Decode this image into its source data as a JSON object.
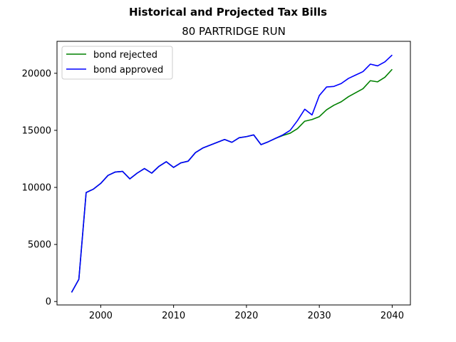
{
  "chart_data": {
    "type": "line",
    "title": "Historical and Projected Tax Bills",
    "subtitle": "80 PARTRIDGE RUN",
    "xlabel": "",
    "ylabel": "",
    "xlim": [
      1994,
      2042.5
    ],
    "ylim": [
      -300,
      22800
    ],
    "xticks": [
      2000,
      2010,
      2020,
      2030,
      2040
    ],
    "yticks": [
      0,
      5000,
      10000,
      15000,
      20000
    ],
    "grid": false,
    "legend_position": "upper-left",
    "series": [
      {
        "name": "bond rejected",
        "color": "#008000",
        "x": [
          1996,
          1997,
          1998,
          1999,
          2000,
          2001,
          2002,
          2003,
          2004,
          2005,
          2006,
          2007,
          2008,
          2009,
          2010,
          2011,
          2012,
          2013,
          2014,
          2015,
          2016,
          2017,
          2018,
          2019,
          2020,
          2021,
          2022,
          2023,
          2024,
          2025,
          2026,
          2027,
          2028,
          2029,
          2030,
          2031,
          2032,
          2033,
          2034,
          2035,
          2036,
          2037,
          2038,
          2039,
          2040
        ],
        "y": [
          800,
          1950,
          9550,
          9850,
          10350,
          11050,
          11350,
          11400,
          10750,
          11250,
          11650,
          11250,
          11850,
          12250,
          11750,
          12150,
          12300,
          13050,
          13450,
          13700,
          13950,
          14200,
          13950,
          14350,
          14450,
          14600,
          13750,
          14000,
          14300,
          14550,
          14750,
          15150,
          15800,
          15950,
          16200,
          16800,
          17200,
          17500,
          17950,
          18300,
          18650,
          19350,
          19250,
          19650,
          20350
        ]
      },
      {
        "name": "bond approved",
        "color": "#0000ff",
        "x": [
          1996,
          1997,
          1998,
          1999,
          2000,
          2001,
          2002,
          2003,
          2004,
          2005,
          2006,
          2007,
          2008,
          2009,
          2010,
          2011,
          2012,
          2013,
          2014,
          2015,
          2016,
          2017,
          2018,
          2019,
          2020,
          2021,
          2022,
          2023,
          2024,
          2025,
          2026,
          2027,
          2028,
          2029,
          2030,
          2031,
          2032,
          2033,
          2034,
          2035,
          2036,
          2037,
          2038,
          2039,
          2040
        ],
        "y": [
          800,
          1950,
          9550,
          9850,
          10350,
          11050,
          11350,
          11400,
          10750,
          11250,
          11650,
          11250,
          11850,
          12250,
          11750,
          12150,
          12300,
          13050,
          13450,
          13700,
          13950,
          14200,
          13950,
          14350,
          14450,
          14600,
          13750,
          14000,
          14300,
          14600,
          15000,
          15850,
          16850,
          16350,
          18050,
          18800,
          18850,
          19100,
          19550,
          19850,
          20150,
          20800,
          20650,
          21000,
          21600
        ]
      }
    ]
  }
}
